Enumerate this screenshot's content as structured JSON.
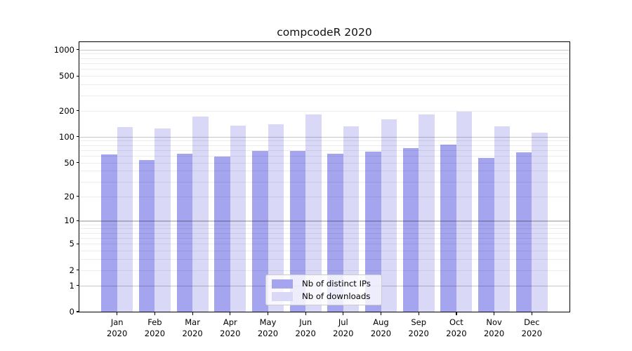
{
  "figure": {
    "background": "#ffffff"
  },
  "chart_data": {
    "type": "bar",
    "title": "compcodeR 2020",
    "xlabel": "",
    "ylabel": "",
    "categories": [
      "Jan 2020",
      "Feb 2020",
      "Mar 2020",
      "Apr 2020",
      "May 2020",
      "Jun 2020",
      "Jul 2020",
      "Aug 2020",
      "Sep 2020",
      "Oct 2020",
      "Nov 2020",
      "Dec 2020"
    ],
    "series": [
      {
        "name": "Nb of distinct IPs",
        "color": "#a5a5ef",
        "values": [
          62,
          54,
          64,
          59,
          68,
          69,
          63,
          67,
          74,
          81,
          57,
          66
        ]
      },
      {
        "name": "Nb of downloads",
        "color": "#d9d9f7",
        "values": [
          130,
          125,
          172,
          134,
          139,
          179,
          132,
          159,
          182,
          194,
          132,
          112
        ]
      }
    ],
    "yscale": "log1p",
    "ylim": [
      0,
      1220
    ],
    "yticks": [
      0,
      1,
      2,
      5,
      10,
      20,
      50,
      100,
      200,
      500,
      1000
    ],
    "major_gridlines": [
      1,
      10,
      100,
      1000
    ],
    "minor_gridlines": [
      2,
      3,
      4,
      5,
      6,
      7,
      8,
      9,
      20,
      30,
      40,
      50,
      60,
      70,
      80,
      90,
      200,
      300,
      400,
      500,
      600,
      700,
      800,
      900
    ],
    "grid": true,
    "legend_position": "lower-center-inside",
    "colors": {
      "major_grid": "#00000038",
      "minor_grid": "#00000013",
      "axis": "#000000",
      "legend_border": "#cccccc"
    }
  }
}
